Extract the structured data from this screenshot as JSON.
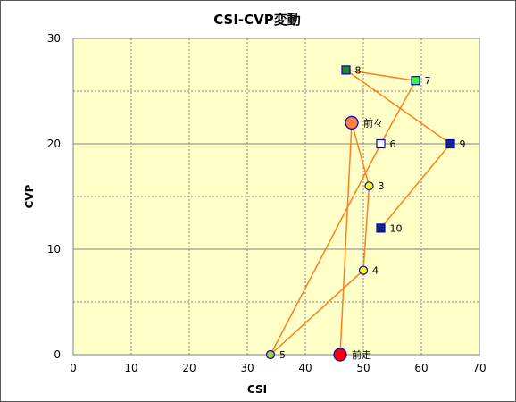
{
  "chart_data": {
    "type": "scatter",
    "title": "CSI-CVP変動",
    "xlabel": "CSI",
    "ylabel": "CVP",
    "xlim": [
      0,
      70
    ],
    "ylim": [
      0,
      30
    ],
    "x_ticks": [
      0,
      10,
      20,
      30,
      40,
      50,
      60,
      70
    ],
    "y_ticks": [
      0,
      10,
      20,
      30
    ],
    "grid": true,
    "plot_background": "#ffffc8",
    "line_color": "#ff7f1e",
    "points": [
      {
        "label": "前走",
        "x": 46,
        "y": 0,
        "shape": "circle",
        "color": "#ff0000"
      },
      {
        "label": "前々",
        "x": 48,
        "y": 22,
        "shape": "circle",
        "color": "#ff8040"
      },
      {
        "label": "3",
        "x": 51,
        "y": 16,
        "shape": "circle",
        "color": "#ffff00"
      },
      {
        "label": "4",
        "x": 50,
        "y": 8,
        "shape": "circle",
        "color": "#ffff00"
      },
      {
        "label": "5",
        "x": 34,
        "y": 0,
        "shape": "circle",
        "color": "#9acd32"
      },
      {
        "label": "6",
        "x": 53,
        "y": 20,
        "shape": "square",
        "color": "#ffffff"
      },
      {
        "label": "7",
        "x": 59,
        "y": 26,
        "shape": "square",
        "color": "#33ff33"
      },
      {
        "label": "8",
        "x": 47,
        "y": 27,
        "shape": "square",
        "color": "#228b22"
      },
      {
        "label": "9",
        "x": 65,
        "y": 20,
        "shape": "square",
        "color": "#1a237e"
      },
      {
        "label": "10",
        "x": 53,
        "y": 12,
        "shape": "square",
        "color": "#1a237e"
      }
    ]
  }
}
